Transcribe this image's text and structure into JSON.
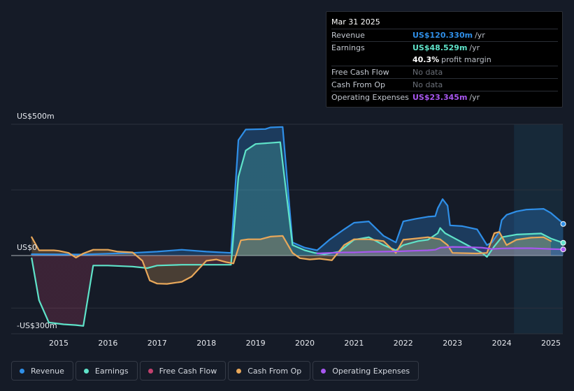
{
  "tooltip": {
    "date": "Mar 31 2025",
    "rows": [
      {
        "label": "Revenue",
        "value": "US$120.330m",
        "unit": "/yr"
      },
      {
        "label": "Earnings",
        "value": "US$48.529m",
        "unit": "/yr"
      },
      {
        "label": "",
        "value": "40.3%",
        "unit": "profit margin"
      },
      {
        "label": "Free Cash Flow",
        "value": "No data",
        "unit": ""
      },
      {
        "label": "Cash From Op",
        "value": "No data",
        "unit": ""
      },
      {
        "label": "Operating Expenses",
        "value": "US$23.345m",
        "unit": "/yr"
      }
    ]
  },
  "legend": [
    {
      "label": "Revenue",
      "color": "#2f8fe8"
    },
    {
      "label": "Earnings",
      "color": "#5fe3c9"
    },
    {
      "label": "Free Cash Flow",
      "color": "#c2416e"
    },
    {
      "label": "Cash From Op",
      "color": "#e9a85a"
    },
    {
      "label": "Operating Expenses",
      "color": "#a857f0"
    }
  ],
  "chart_data": {
    "type": "line",
    "y_axis_labels": [
      "US$500m",
      "US$0",
      "-US$300m"
    ],
    "x_ticks": [
      "2015",
      "2016",
      "2017",
      "2018",
      "2019",
      "2020",
      "2021",
      "2022",
      "2023",
      "2024",
      "2025"
    ],
    "ylim": [
      -300,
      500
    ],
    "grid": true,
    "highlight_start": 2024.25,
    "series": [
      {
        "name": "Revenue",
        "color": "#2f8fe8",
        "points": [
          [
            2014.45,
            5
          ],
          [
            2015.5,
            4
          ],
          [
            2016.5,
            10
          ],
          [
            2017,
            15
          ],
          [
            2017.5,
            22
          ],
          [
            2018,
            15
          ],
          [
            2018.5,
            10
          ],
          [
            2018.65,
            440
          ],
          [
            2018.8,
            480
          ],
          [
            2019.2,
            482
          ],
          [
            2019.3,
            488
          ],
          [
            2019.55,
            490
          ],
          [
            2019.75,
            50
          ],
          [
            2020.0,
            30
          ],
          [
            2020.25,
            20
          ],
          [
            2020.5,
            60
          ],
          [
            2020.8,
            100
          ],
          [
            2021.0,
            125
          ],
          [
            2021.3,
            130
          ],
          [
            2021.6,
            75
          ],
          [
            2021.85,
            50
          ],
          [
            2022.0,
            130
          ],
          [
            2022.25,
            140
          ],
          [
            2022.5,
            148
          ],
          [
            2022.65,
            150
          ],
          [
            2022.7,
            180
          ],
          [
            2022.8,
            215
          ],
          [
            2022.9,
            190
          ],
          [
            2022.95,
            115
          ],
          [
            2023.2,
            112
          ],
          [
            2023.5,
            100
          ],
          [
            2023.7,
            40
          ],
          [
            2023.8,
            50
          ],
          [
            2023.95,
            90
          ],
          [
            2024.0,
            135
          ],
          [
            2024.1,
            155
          ],
          [
            2024.3,
            168
          ],
          [
            2024.5,
            175
          ],
          [
            2024.85,
            178
          ],
          [
            2025.0,
            162
          ],
          [
            2025.2,
            130
          ],
          [
            2025.25,
            120.33
          ]
        ]
      },
      {
        "name": "Earnings",
        "color": "#5fe3c9",
        "points": [
          [
            2014.45,
            -10
          ],
          [
            2014.6,
            -170
          ],
          [
            2014.8,
            -255
          ],
          [
            2015.1,
            -262
          ],
          [
            2015.35,
            -265
          ],
          [
            2015.5,
            -268
          ],
          [
            2015.7,
            -38
          ],
          [
            2016.0,
            -38
          ],
          [
            2016.5,
            -42
          ],
          [
            2016.8,
            -48
          ],
          [
            2017.0,
            -38
          ],
          [
            2017.5,
            -35
          ],
          [
            2018.0,
            -35
          ],
          [
            2018.5,
            -35
          ],
          [
            2018.65,
            300
          ],
          [
            2018.8,
            400
          ],
          [
            2019.0,
            425
          ],
          [
            2019.5,
            432
          ],
          [
            2019.75,
            40
          ],
          [
            2020.0,
            20
          ],
          [
            2020.2,
            10
          ],
          [
            2020.4,
            5
          ],
          [
            2020.7,
            15
          ],
          [
            2021.0,
            60
          ],
          [
            2021.3,
            70
          ],
          [
            2021.6,
            40
          ],
          [
            2021.85,
            20
          ],
          [
            2022.0,
            40
          ],
          [
            2022.3,
            55
          ],
          [
            2022.5,
            60
          ],
          [
            2022.7,
            85
          ],
          [
            2022.75,
            105
          ],
          [
            2022.85,
            85
          ],
          [
            2023.0,
            70
          ],
          [
            2023.3,
            40
          ],
          [
            2023.6,
            10
          ],
          [
            2023.7,
            -5
          ],
          [
            2023.85,
            35
          ],
          [
            2024.0,
            70
          ],
          [
            2024.3,
            80
          ],
          [
            2024.8,
            84
          ],
          [
            2025.0,
            65
          ],
          [
            2025.25,
            48.529
          ]
        ]
      },
      {
        "name": "Cash From Op",
        "color": "#e9a85a",
        "points": [
          [
            2014.45,
            70
          ],
          [
            2014.6,
            20
          ],
          [
            2014.9,
            20
          ],
          [
            2015.0,
            18
          ],
          [
            2015.2,
            10
          ],
          [
            2015.35,
            -8
          ],
          [
            2015.5,
            8
          ],
          [
            2015.7,
            22
          ],
          [
            2016.0,
            22
          ],
          [
            2016.2,
            15
          ],
          [
            2016.5,
            12
          ],
          [
            2016.7,
            -20
          ],
          [
            2016.85,
            -95
          ],
          [
            2017.0,
            -107
          ],
          [
            2017.2,
            -108
          ],
          [
            2017.5,
            -100
          ],
          [
            2017.7,
            -80
          ],
          [
            2017.85,
            -50
          ],
          [
            2018.0,
            -20
          ],
          [
            2018.2,
            -15
          ],
          [
            2018.4,
            -25
          ],
          [
            2018.55,
            -30
          ],
          [
            2018.7,
            58
          ],
          [
            2018.85,
            62
          ],
          [
            2019.1,
            62
          ],
          [
            2019.3,
            72
          ],
          [
            2019.55,
            75
          ],
          [
            2019.75,
            10
          ],
          [
            2019.9,
            -10
          ],
          [
            2020.1,
            -15
          ],
          [
            2020.3,
            -12
          ],
          [
            2020.55,
            -18
          ],
          [
            2020.8,
            40
          ],
          [
            2021.0,
            62
          ],
          [
            2021.3,
            62
          ],
          [
            2021.6,
            55
          ],
          [
            2021.85,
            10
          ],
          [
            2022.0,
            60
          ],
          [
            2022.25,
            65
          ],
          [
            2022.5,
            70
          ],
          [
            2022.75,
            62
          ],
          [
            2022.9,
            40
          ],
          [
            2023.0,
            10
          ],
          [
            2023.5,
            8
          ],
          [
            2023.7,
            10
          ],
          [
            2023.85,
            85
          ],
          [
            2023.95,
            90
          ],
          [
            2024.1,
            40
          ],
          [
            2024.3,
            60
          ],
          [
            2024.6,
            68
          ],
          [
            2024.85,
            70
          ],
          [
            2025.0,
            55
          ]
        ]
      },
      {
        "name": "Operating Expenses",
        "color": "#a857f0",
        "points": [
          [
            2020.25,
            8
          ],
          [
            2020.5,
            10
          ],
          [
            2020.8,
            12
          ],
          [
            2021.0,
            12
          ],
          [
            2021.3,
            14
          ],
          [
            2021.6,
            15
          ],
          [
            2021.9,
            16
          ],
          [
            2022.2,
            18
          ],
          [
            2022.5,
            20
          ],
          [
            2022.65,
            22
          ],
          [
            2022.75,
            30
          ],
          [
            2023.0,
            33
          ],
          [
            2023.3,
            32
          ],
          [
            2023.6,
            30
          ],
          [
            2023.8,
            25
          ],
          [
            2024.0,
            27
          ],
          [
            2024.3,
            28
          ],
          [
            2024.6,
            28
          ],
          [
            2025.0,
            25
          ],
          [
            2025.25,
            23.345
          ]
        ]
      }
    ]
  }
}
